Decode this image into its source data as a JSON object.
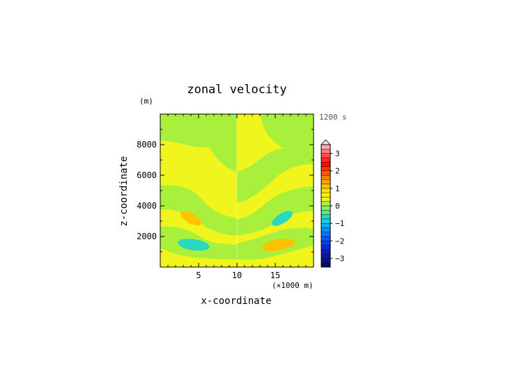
{
  "chart_data": {
    "type": "heatmap",
    "title": "zonal velocity",
    "xlabel": "x-coordinate",
    "ylabel": "z-coordinate",
    "x_units": "(×1000 m)",
    "y_units": "(m)",
    "time_label": "1200 s",
    "xlim": [
      0,
      20
    ],
    "ylim": [
      0,
      10000
    ],
    "x_ticks": [
      5,
      10,
      15
    ],
    "y_ticks": [
      2000,
      4000,
      6000,
      8000
    ],
    "colorbar": {
      "levels": [
        -3.5,
        -3.25,
        -3,
        -2.75,
        -2.5,
        -2.25,
        -2,
        -1.75,
        -1.5,
        -1.25,
        -1,
        -0.75,
        -0.5,
        -0.25,
        0,
        0.25,
        0.5,
        0.75,
        1,
        1.25,
        1.5,
        1.75,
        2,
        2.25,
        2.5,
        2.75,
        3,
        3.25,
        3.5
      ],
      "tick_labels": [
        -3,
        -2,
        -1,
        0,
        1,
        2,
        3
      ],
      "colors": [
        "#0a0a6e",
        "#0a0f8a",
        "#0a14a5",
        "#0a1ec0",
        "#0a28d8",
        "#0a3cf0",
        "#0a55ff",
        "#0a70ff",
        "#0a90ff",
        "#0ab0ff",
        "#18c8e6",
        "#28d8c0",
        "#5ae696",
        "#8cf05a",
        "#a8f03c",
        "#f0f51e",
        "#fff500",
        "#ffdc00",
        "#ffc300",
        "#ffa500",
        "#ff8000",
        "#ff5a00",
        "#ff3200",
        "#ff0a00",
        "#ff2828",
        "#ff5050",
        "#ff7878",
        "#ffaaaa"
      ],
      "extend": "max"
    },
    "regions": {
      "background": 0.05,
      "green": -0.1,
      "yellow": 0.1,
      "orange_center": 0.5,
      "cyan_center": -0.5
    }
  }
}
